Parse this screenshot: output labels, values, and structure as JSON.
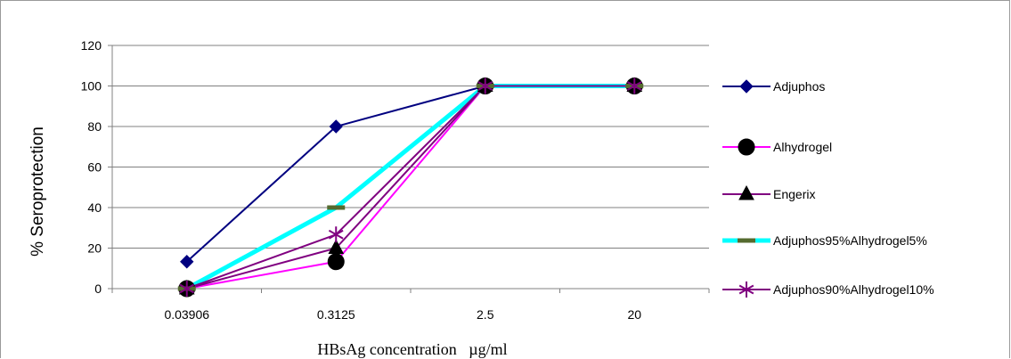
{
  "chart_data": {
    "type": "line",
    "title": "",
    "xlabel": "HBsAg concentration   µg/ml",
    "ylabel": "% Seroprotection",
    "categories": [
      "0.03906",
      "0.3125",
      "2.5",
      "20"
    ],
    "ylim": [
      0,
      120
    ],
    "yticks": [
      0,
      20,
      40,
      60,
      80,
      100,
      120
    ],
    "grid": true,
    "legend_position": "right",
    "series": [
      {
        "name": "Adjuphos",
        "values": [
          13.3,
          80,
          100,
          100
        ],
        "color": "#000080",
        "marker": "diamond"
      },
      {
        "name": "Alhydrogel",
        "values": [
          0,
          13.3,
          100,
          100
        ],
        "color": "#ff00ff",
        "marker": "circle",
        "marker_color": "#000000"
      },
      {
        "name": "Engerix",
        "values": [
          0,
          20,
          100,
          100
        ],
        "color": "#800080",
        "marker": "triangle",
        "marker_color": "#000000"
      },
      {
        "name": "Adjuphos95%Alhydrogel5%",
        "values": [
          0,
          40,
          100,
          100
        ],
        "color": "#00ffff",
        "marker": "dash",
        "marker_color": "#556b2f"
      },
      {
        "name": "Adjuphos90%Alhydrogel10%",
        "values": [
          0,
          26.7,
          100,
          100
        ],
        "color": "#800080",
        "marker": "star"
      }
    ]
  }
}
